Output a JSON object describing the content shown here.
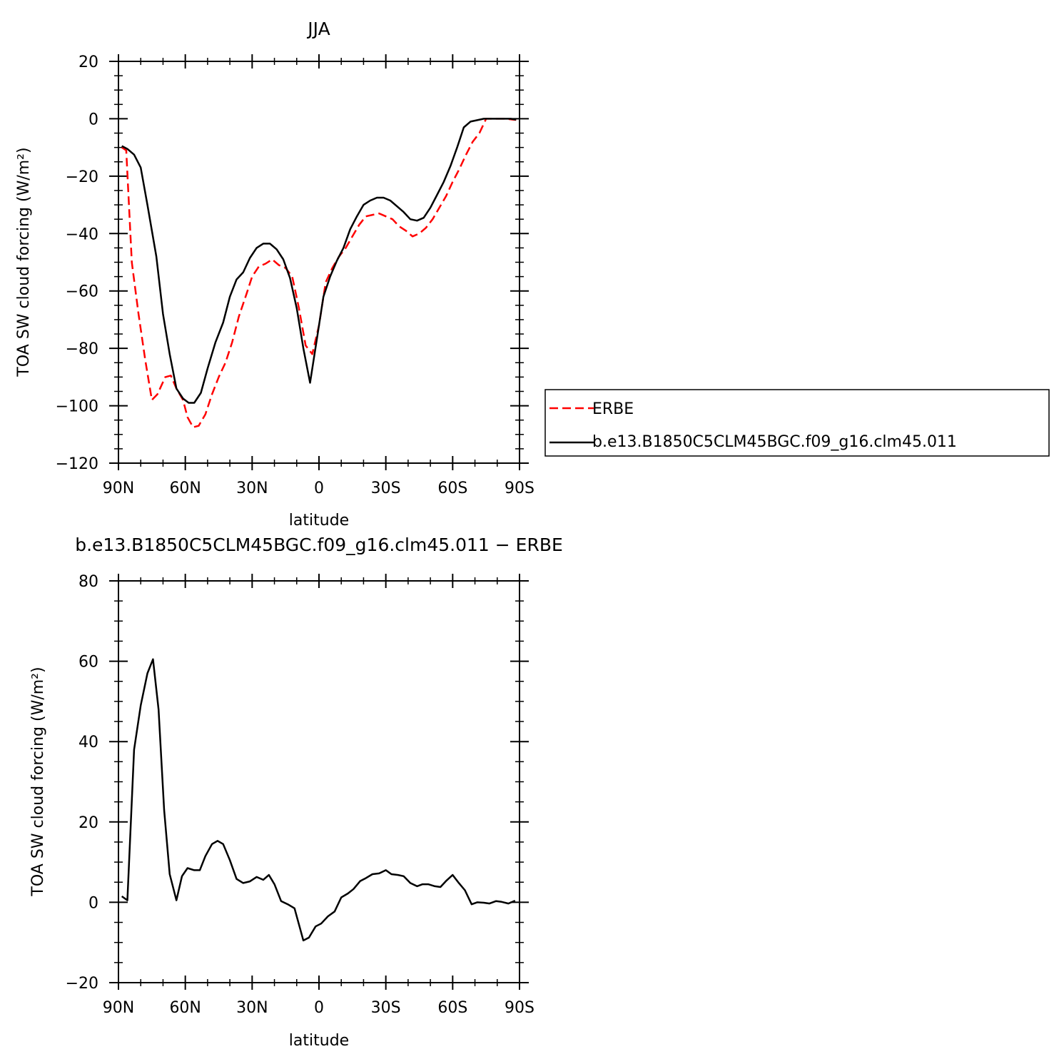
{
  "chart_data": [
    {
      "type": "line",
      "title": "JJA",
      "xlabel": "latitude",
      "ylabel": "TOA SW cloud forcing (W/m²)",
      "xlim": [
        90,
        -90
      ],
      "ylim": [
        -120,
        20
      ],
      "xtick_values": [
        90,
        60,
        30,
        0,
        -30,
        -60,
        -90
      ],
      "xtick_labels": [
        "90N",
        "60N",
        "30N",
        "0",
        "30S",
        "60S",
        "90S"
      ],
      "ytick_values": [
        20,
        0,
        -20,
        -40,
        -60,
        -80,
        -100,
        -120
      ],
      "ytick_labels": [
        "20",
        "0",
        "−20",
        "−40",
        "−60",
        "−80",
        "−100",
        "−120"
      ],
      "grid": false,
      "legend_position": "right, outside",
      "series": [
        {
          "name": "ERBE",
          "color": "#ff0000",
          "dash": "dashed",
          "points": [
            [
              88.5,
              -10
            ],
            [
              86.5,
              -11
            ],
            [
              84,
              -50
            ],
            [
              81,
              -68
            ],
            [
              78,
              -84
            ],
            [
              75,
              -98
            ],
            [
              72.5,
              -96
            ],
            [
              69,
              -90
            ],
            [
              66.5,
              -89.5
            ],
            [
              64,
              -94
            ],
            [
              61,
              -98
            ],
            [
              59,
              -104
            ],
            [
              56.5,
              -107.5
            ],
            [
              54,
              -107
            ],
            [
              51,
              -103
            ],
            [
              48,
              -96
            ],
            [
              45,
              -90
            ],
            [
              42,
              -85
            ],
            [
              39,
              -78
            ],
            [
              36,
              -69
            ],
            [
              32.5,
              -61
            ],
            [
              30,
              -55
            ],
            [
              27,
              -51.5
            ],
            [
              24,
              -50.5
            ],
            [
              21,
              -49
            ],
            [
              18,
              -51
            ],
            [
              15,
              -52
            ],
            [
              12,
              -55
            ],
            [
              9,
              -66
            ],
            [
              6,
              -79
            ],
            [
              3,
              -82
            ],
            [
              0,
              -72
            ],
            [
              -3,
              -57
            ],
            [
              -6,
              -52
            ],
            [
              -9,
              -48
            ],
            [
              -12,
              -45
            ],
            [
              -15,
              -41
            ],
            [
              -18,
              -37
            ],
            [
              -21,
              -34
            ],
            [
              -24,
              -33.5
            ],
            [
              -27,
              -33
            ],
            [
              -30,
              -34
            ],
            [
              -33,
              -35
            ],
            [
              -36,
              -37.5
            ],
            [
              -39,
              -39
            ],
            [
              -42,
              -41
            ],
            [
              -45,
              -40
            ],
            [
              -48,
              -38
            ],
            [
              -51,
              -35
            ],
            [
              -54,
              -31
            ],
            [
              -57,
              -27
            ],
            [
              -60,
              -22
            ],
            [
              -63,
              -17.5
            ],
            [
              -66,
              -12.5
            ],
            [
              -69,
              -8
            ],
            [
              -72,
              -5
            ],
            [
              -75,
              0
            ],
            [
              -78,
              0
            ],
            [
              -81,
              0
            ],
            [
              -84,
              0
            ],
            [
              -87,
              -0.3
            ],
            [
              -88.5,
              -0.4
            ]
          ]
        },
        {
          "name": "b.e13.B1850C5CLM45BGC.f09_g16.clm45.011",
          "color": "#000000",
          "dash": "solid",
          "points": [
            [
              88.5,
              -9.5
            ],
            [
              86,
              -10.5
            ],
            [
              83,
              -12.5
            ],
            [
              80,
              -17
            ],
            [
              77,
              -30
            ],
            [
              73,
              -48
            ],
            [
              70,
              -68
            ],
            [
              67,
              -82
            ],
            [
              64,
              -94
            ],
            [
              61,
              -97.5
            ],
            [
              58.5,
              -99
            ],
            [
              56,
              -99
            ],
            [
              53,
              -95.5
            ],
            [
              50,
              -87
            ],
            [
              46.5,
              -78
            ],
            [
              43,
              -71
            ],
            [
              40,
              -62
            ],
            [
              37,
              -56
            ],
            [
              34,
              -53.5
            ],
            [
              31,
              -48.5
            ],
            [
              28,
              -45
            ],
            [
              25,
              -43.5
            ],
            [
              22,
              -43.5
            ],
            [
              19,
              -45.5
            ],
            [
              16,
              -49
            ],
            [
              13,
              -55.5
            ],
            [
              10,
              -66
            ],
            [
              7,
              -80
            ],
            [
              4,
              -92
            ],
            [
              1,
              -77
            ],
            [
              -2,
              -62
            ],
            [
              -5,
              -55
            ],
            [
              -8,
              -49.5
            ],
            [
              -11,
              -45
            ],
            [
              -14,
              -38.5
            ],
            [
              -17,
              -34
            ],
            [
              -20,
              -30
            ],
            [
              -23,
              -28.5
            ],
            [
              -26,
              -27.5
            ],
            [
              -29,
              -27.5
            ],
            [
              -32,
              -28.5
            ],
            [
              -35,
              -30.5
            ],
            [
              -38,
              -32.5
            ],
            [
              -41,
              -35
            ],
            [
              -44,
              -35.5
            ],
            [
              -47,
              -34.5
            ],
            [
              -50,
              -31
            ],
            [
              -53,
              -26.5
            ],
            [
              -56,
              -22
            ],
            [
              -59,
              -16.5
            ],
            [
              -62,
              -10
            ],
            [
              -65,
              -3
            ],
            [
              -68,
              -1
            ],
            [
              -71,
              -0.5
            ],
            [
              -74,
              0
            ],
            [
              -77,
              0
            ],
            [
              -80,
              0
            ],
            [
              -83,
              0
            ],
            [
              -86,
              0
            ],
            [
              -88.5,
              -0.3
            ]
          ]
        }
      ]
    },
    {
      "type": "line",
      "title": "b.e13.B1850C5CLM45BGC.f09_g16.clm45.011 − ERBE",
      "xlabel": "latitude",
      "ylabel": "TOA SW cloud forcing (W/m²)",
      "xlim": [
        90,
        -90
      ],
      "ylim": [
        -20,
        80
      ],
      "xtick_values": [
        90,
        60,
        30,
        0,
        -30,
        -60,
        -90
      ],
      "xtick_labels": [
        "90N",
        "60N",
        "30N",
        "0",
        "30S",
        "60S",
        "90S"
      ],
      "ytick_values": [
        80,
        60,
        40,
        20,
        0,
        -20
      ],
      "ytick_labels": [
        "80",
        "60",
        "40",
        "20",
        "0",
        "−20"
      ],
      "grid": false,
      "series": [
        {
          "color": "#000000",
          "dash": "solid",
          "points": [
            [
              88.5,
              1.5
            ],
            [
              86,
              0.5
            ],
            [
              83,
              38
            ],
            [
              80,
              49
            ],
            [
              77,
              57
            ],
            [
              74.5,
              60.5
            ],
            [
              72,
              48
            ],
            [
              69.5,
              23
            ],
            [
              67,
              7
            ],
            [
              64,
              0.5
            ],
            [
              61.5,
              6.5
            ],
            [
              59,
              8.5
            ],
            [
              56,
              8
            ],
            [
              53.5,
              8
            ],
            [
              51,
              11.5
            ],
            [
              48,
              14.5
            ],
            [
              45.5,
              15.3
            ],
            [
              43,
              14.5
            ],
            [
              40,
              10.5
            ],
            [
              37,
              5.8
            ],
            [
              34,
              4.8
            ],
            [
              31,
              5.2
            ],
            [
              28,
              6.3
            ],
            [
              25,
              5.6
            ],
            [
              22.5,
              6.8
            ],
            [
              20,
              4.5
            ],
            [
              17,
              0.3
            ],
            [
              14,
              -0.5
            ],
            [
              11,
              -1.5
            ],
            [
              7,
              -9.5
            ],
            [
              4.5,
              -8.8
            ],
            [
              1.5,
              -6
            ],
            [
              -1,
              -5.3
            ],
            [
              -4,
              -3.5
            ],
            [
              -7,
              -2.3
            ],
            [
              -10,
              1.2
            ],
            [
              -13,
              2.2
            ],
            [
              -15.5,
              3.3
            ],
            [
              -18.5,
              5.3
            ],
            [
              -21,
              6
            ],
            [
              -24,
              7
            ],
            [
              -27,
              7.2
            ],
            [
              -30,
              8
            ],
            [
              -32.5,
              7
            ],
            [
              -35.5,
              6.8
            ],
            [
              -38,
              6.5
            ],
            [
              -41,
              4.8
            ],
            [
              -44,
              4
            ],
            [
              -46.5,
              4.5
            ],
            [
              -49,
              4.5
            ],
            [
              -52,
              4
            ],
            [
              -54.5,
              3.8
            ],
            [
              -57,
              5.3
            ],
            [
              -60,
              6.8
            ],
            [
              -62.5,
              5
            ],
            [
              -65.5,
              3
            ],
            [
              -68.5,
              -0.5
            ],
            [
              -71,
              0
            ],
            [
              -74,
              -0.1
            ],
            [
              -76.5,
              -0.3
            ],
            [
              -79.5,
              0.3
            ],
            [
              -82,
              0.1
            ],
            [
              -85,
              -0.3
            ],
            [
              -88,
              0.4
            ]
          ]
        }
      ]
    }
  ]
}
